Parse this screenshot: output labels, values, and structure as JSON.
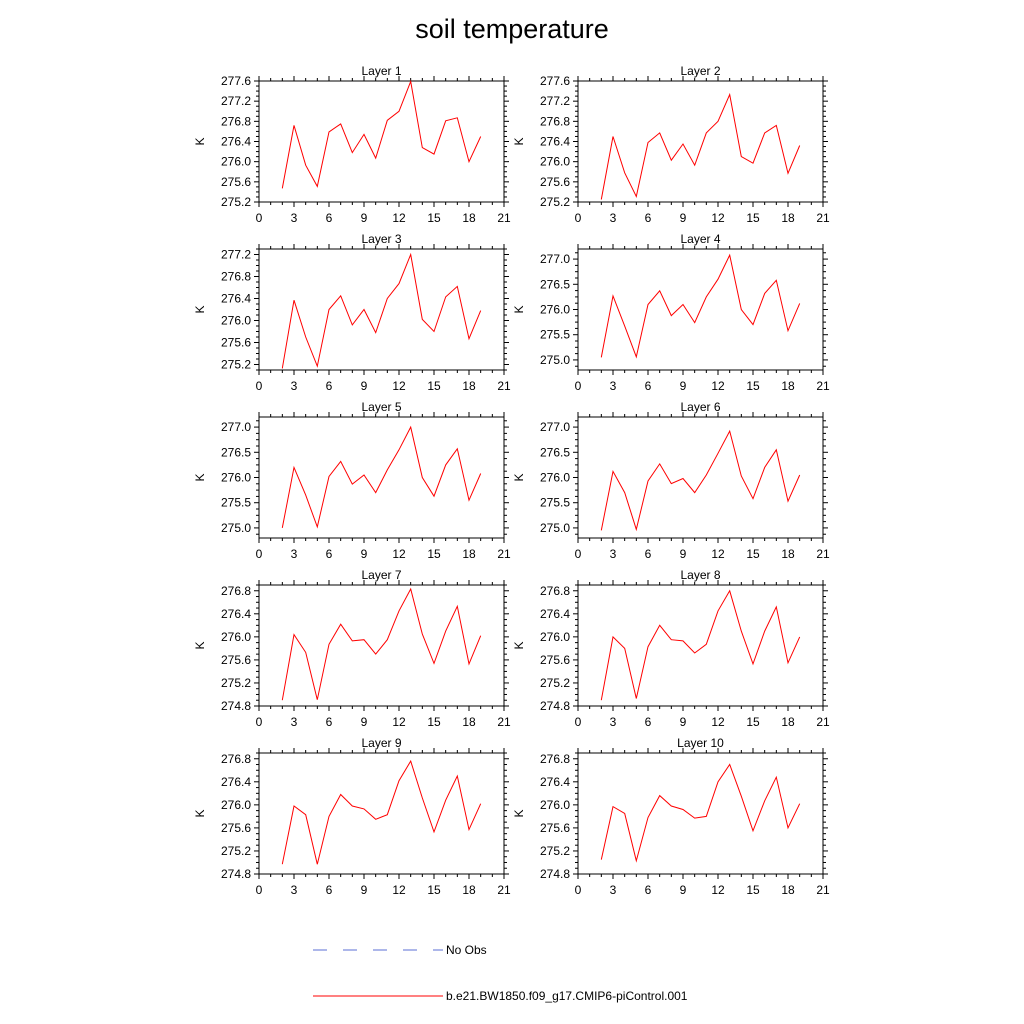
{
  "page": {
    "title": "soil temperature"
  },
  "legend": {
    "items": [
      {
        "label": "No Obs",
        "style": "dashed",
        "color": "#5b6fd6"
      },
      {
        "label": "b.e21.BW1850.f09_g17.CMIP6-piControl.001",
        "style": "solid",
        "color": "#ff0000"
      }
    ]
  },
  "chart_data": [
    {
      "type": "line",
      "title": "Layer 1",
      "ylabel": "K",
      "xlim": [
        0,
        21
      ],
      "ylim": [
        275.2,
        277.6
      ],
      "xticks": [
        0,
        3,
        6,
        9,
        12,
        15,
        18,
        21
      ],
      "yticks": [
        275.2,
        275.6,
        276.0,
        276.4,
        276.8,
        277.2,
        277.6
      ],
      "ytick_labels": [
        "275.2",
        "275.6",
        "276.0",
        "276.4",
        "276.8",
        "277.2",
        "277.6"
      ],
      "series": [
        {
          "color": "#ff0000",
          "x": [
            2,
            3,
            4,
            5,
            6,
            7,
            8,
            9,
            10,
            11,
            12,
            13,
            14,
            15,
            16,
            17,
            18,
            19
          ],
          "y": [
            275.47,
            276.72,
            275.93,
            275.51,
            276.59,
            276.75,
            276.18,
            276.54,
            276.07,
            276.82,
            277.0,
            277.59,
            276.28,
            276.15,
            276.81,
            276.87,
            276.0,
            276.5
          ]
        }
      ]
    },
    {
      "type": "line",
      "title": "Layer 2",
      "ylabel": "K",
      "xlim": [
        0,
        21
      ],
      "ylim": [
        275.2,
        277.6
      ],
      "xticks": [
        0,
        3,
        6,
        9,
        12,
        15,
        18,
        21
      ],
      "yticks": [
        275.2,
        275.6,
        276.0,
        276.4,
        276.8,
        277.2,
        277.6
      ],
      "ytick_labels": [
        "275.2",
        "275.6",
        "276.0",
        "276.4",
        "276.8",
        "277.2",
        "277.6"
      ],
      "series": [
        {
          "color": "#ff0000",
          "x": [
            2,
            3,
            4,
            5,
            6,
            7,
            8,
            9,
            10,
            11,
            12,
            13,
            14,
            15,
            16,
            17,
            18,
            19
          ],
          "y": [
            275.25,
            276.5,
            275.78,
            275.31,
            276.38,
            276.57,
            276.03,
            276.35,
            275.93,
            276.57,
            276.8,
            277.33,
            276.1,
            275.97,
            276.57,
            276.72,
            275.77,
            276.32
          ]
        }
      ]
    },
    {
      "type": "line",
      "title": "Layer 3",
      "ylabel": "K",
      "xlim": [
        0,
        21
      ],
      "ylim": [
        275.1,
        277.3
      ],
      "xticks": [
        0,
        3,
        6,
        9,
        12,
        15,
        18,
        21
      ],
      "yticks": [
        275.2,
        275.6,
        276.0,
        276.4,
        276.8,
        277.2
      ],
      "ytick_labels": [
        "275.2",
        "275.6",
        "276.0",
        "276.4",
        "276.8",
        "277.2"
      ],
      "series": [
        {
          "color": "#ff0000",
          "x": [
            2,
            3,
            4,
            5,
            6,
            7,
            8,
            9,
            10,
            11,
            12,
            13,
            14,
            15,
            16,
            17,
            18,
            19
          ],
          "y": [
            275.13,
            276.37,
            275.7,
            275.17,
            276.2,
            276.45,
            275.92,
            276.2,
            275.78,
            276.4,
            276.67,
            277.2,
            276.02,
            275.8,
            276.43,
            276.62,
            275.67,
            276.18
          ]
        }
      ]
    },
    {
      "type": "line",
      "title": "Layer 4",
      "ylabel": "K",
      "xlim": [
        0,
        21
      ],
      "ylim": [
        274.8,
        277.2
      ],
      "xticks": [
        0,
        3,
        6,
        9,
        12,
        15,
        18,
        21
      ],
      "yticks": [
        275.0,
        275.5,
        276.0,
        276.5,
        277.0
      ],
      "ytick_labels": [
        "275.0",
        "275.5",
        "276.0",
        "276.5",
        "277.0"
      ],
      "series": [
        {
          "color": "#ff0000",
          "x": [
            2,
            3,
            4,
            5,
            6,
            7,
            8,
            9,
            10,
            11,
            12,
            13,
            14,
            15,
            16,
            17,
            18,
            19
          ],
          "y": [
            275.05,
            276.27,
            275.67,
            275.06,
            276.1,
            276.37,
            275.88,
            276.1,
            275.74,
            276.25,
            276.6,
            277.08,
            276.0,
            275.7,
            276.32,
            276.58,
            275.58,
            276.12
          ]
        }
      ]
    },
    {
      "type": "line",
      "title": "Layer 5",
      "ylabel": "K",
      "xlim": [
        0,
        21
      ],
      "ylim": [
        274.8,
        277.2
      ],
      "xticks": [
        0,
        3,
        6,
        9,
        12,
        15,
        18,
        21
      ],
      "yticks": [
        275.0,
        275.5,
        276.0,
        276.5,
        277.0
      ],
      "ytick_labels": [
        "275.0",
        "275.5",
        "276.0",
        "276.5",
        "277.0"
      ],
      "series": [
        {
          "color": "#ff0000",
          "x": [
            2,
            3,
            4,
            5,
            6,
            7,
            8,
            9,
            10,
            11,
            12,
            13,
            14,
            15,
            16,
            17,
            18,
            19
          ],
          "y": [
            275.0,
            276.2,
            275.65,
            275.02,
            276.02,
            276.32,
            275.87,
            276.05,
            275.7,
            276.15,
            276.55,
            277.0,
            276.0,
            275.63,
            276.25,
            276.57,
            275.55,
            276.08
          ]
        }
      ]
    },
    {
      "type": "line",
      "title": "Layer 6",
      "ylabel": "K",
      "xlim": [
        0,
        21
      ],
      "ylim": [
        274.8,
        277.2
      ],
      "xticks": [
        0,
        3,
        6,
        9,
        12,
        15,
        18,
        21
      ],
      "yticks": [
        275.0,
        275.5,
        276.0,
        276.5,
        277.0
      ],
      "ytick_labels": [
        "275.0",
        "275.5",
        "276.0",
        "276.5",
        "277.0"
      ],
      "series": [
        {
          "color": "#ff0000",
          "x": [
            2,
            3,
            4,
            5,
            6,
            7,
            8,
            9,
            10,
            11,
            12,
            13,
            14,
            15,
            16,
            17,
            18,
            19
          ],
          "y": [
            274.95,
            276.12,
            275.7,
            274.97,
            275.93,
            276.27,
            275.88,
            275.98,
            275.7,
            276.05,
            276.48,
            276.92,
            276.03,
            275.58,
            276.2,
            276.55,
            275.53,
            276.05
          ]
        }
      ]
    },
    {
      "type": "line",
      "title": "Layer 7",
      "ylabel": "K",
      "xlim": [
        0,
        21
      ],
      "ylim": [
        274.8,
        276.9
      ],
      "xticks": [
        0,
        3,
        6,
        9,
        12,
        15,
        18,
        21
      ],
      "yticks": [
        274.8,
        275.2,
        275.6,
        276.0,
        276.4,
        276.8
      ],
      "ytick_labels": [
        "274.8",
        "275.2",
        "275.6",
        "276.0",
        "276.4",
        "276.8"
      ],
      "series": [
        {
          "color": "#ff0000",
          "x": [
            2,
            3,
            4,
            5,
            6,
            7,
            8,
            9,
            10,
            11,
            12,
            13,
            14,
            15,
            16,
            17,
            18,
            19
          ],
          "y": [
            274.9,
            276.04,
            275.73,
            274.91,
            275.87,
            276.22,
            275.93,
            275.95,
            275.7,
            275.95,
            276.45,
            276.83,
            276.05,
            275.54,
            276.1,
            276.53,
            275.53,
            276.02
          ]
        }
      ]
    },
    {
      "type": "line",
      "title": "Layer 8",
      "ylabel": "K",
      "xlim": [
        0,
        21
      ],
      "ylim": [
        274.8,
        276.9
      ],
      "xticks": [
        0,
        3,
        6,
        9,
        12,
        15,
        18,
        21
      ],
      "yticks": [
        274.8,
        275.2,
        275.6,
        276.0,
        276.4,
        276.8
      ],
      "ytick_labels": [
        "274.8",
        "275.2",
        "275.6",
        "276.0",
        "276.4",
        "276.8"
      ],
      "series": [
        {
          "color": "#ff0000",
          "x": [
            2,
            3,
            4,
            5,
            6,
            7,
            8,
            9,
            10,
            11,
            12,
            13,
            14,
            15,
            16,
            17,
            18,
            19
          ],
          "y": [
            274.9,
            276.0,
            275.8,
            274.93,
            275.83,
            276.2,
            275.95,
            275.93,
            275.72,
            275.87,
            276.45,
            276.8,
            276.1,
            275.53,
            276.1,
            276.52,
            275.55,
            276.0
          ]
        }
      ]
    },
    {
      "type": "line",
      "title": "Layer 9",
      "ylabel": "K",
      "xlim": [
        0,
        21
      ],
      "ylim": [
        274.8,
        276.9
      ],
      "xticks": [
        0,
        3,
        6,
        9,
        12,
        15,
        18,
        21
      ],
      "yticks": [
        274.8,
        275.2,
        275.6,
        276.0,
        276.4,
        276.8
      ],
      "ytick_labels": [
        "274.8",
        "275.2",
        "275.6",
        "276.0",
        "276.4",
        "276.8"
      ],
      "series": [
        {
          "color": "#ff0000",
          "x": [
            2,
            3,
            4,
            5,
            6,
            7,
            8,
            9,
            10,
            11,
            12,
            13,
            14,
            15,
            16,
            17,
            18,
            19
          ],
          "y": [
            274.97,
            275.98,
            275.83,
            274.97,
            275.8,
            276.18,
            275.98,
            275.93,
            275.75,
            275.83,
            276.42,
            276.76,
            276.12,
            275.53,
            276.08,
            276.5,
            275.57,
            276.02
          ]
        }
      ]
    },
    {
      "type": "line",
      "title": "Layer 10",
      "ylabel": "K",
      "xlim": [
        0,
        21
      ],
      "ylim": [
        274.8,
        276.9
      ],
      "xticks": [
        0,
        3,
        6,
        9,
        12,
        15,
        18,
        21
      ],
      "yticks": [
        274.8,
        275.2,
        275.6,
        276.0,
        276.4,
        276.8
      ],
      "ytick_labels": [
        "274.8",
        "275.2",
        "275.6",
        "276.0",
        "276.4",
        "276.8"
      ],
      "series": [
        {
          "color": "#ff0000",
          "x": [
            2,
            3,
            4,
            5,
            6,
            7,
            8,
            9,
            10,
            11,
            12,
            13,
            14,
            15,
            16,
            17,
            18,
            19
          ],
          "y": [
            275.05,
            275.97,
            275.85,
            275.03,
            275.78,
            276.16,
            275.98,
            275.92,
            275.77,
            275.8,
            276.4,
            276.7,
            276.15,
            275.55,
            276.07,
            276.48,
            275.6,
            276.02
          ]
        }
      ]
    }
  ]
}
